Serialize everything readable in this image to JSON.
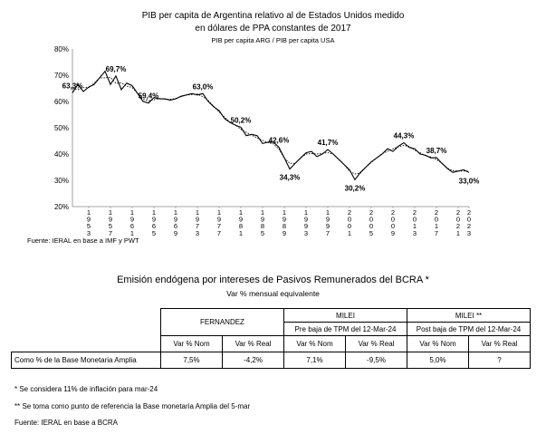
{
  "chart_data": {
    "type": "line",
    "title_line1": "PIB per capita de Argentina relativo al de Estados Unidos medido",
    "title_line2": "en dólares de PPA constantes de 2017",
    "subtitle": "PIB per capita ARG / PIB per capita USA",
    "ylim": [
      20,
      80
    ],
    "yticks": [
      "20%",
      "30%",
      "40%",
      "50%",
      "60%",
      "70%",
      "80%"
    ],
    "xlabels": [
      "1953",
      "1957",
      "1961",
      "1965",
      "1969",
      "1973",
      "1977",
      "1981",
      "1985",
      "1989",
      "1993",
      "1997",
      "2001",
      "2005",
      "2009",
      "2013",
      "2017",
      "2021",
      "2023"
    ],
    "x": [
      1950,
      1951,
      1952,
      1953,
      1954,
      1955,
      1956,
      1957,
      1958,
      1959,
      1960,
      1961,
      1962,
      1963,
      1964,
      1965,
      1966,
      1967,
      1968,
      1969,
      1970,
      1971,
      1972,
      1973,
      1974,
      1975,
      1976,
      1977,
      1978,
      1979,
      1980,
      1981,
      1982,
      1983,
      1984,
      1985,
      1986,
      1987,
      1988,
      1989,
      1990,
      1991,
      1992,
      1993,
      1994,
      1995,
      1996,
      1997,
      1998,
      1999,
      2000,
      2001,
      2002,
      2003,
      2004,
      2005,
      2006,
      2007,
      2008,
      2009,
      2010,
      2011,
      2012,
      2013,
      2014,
      2015,
      2016,
      2017,
      2018,
      2019,
      2020,
      2021,
      2022,
      2023
    ],
    "series": [
      {
        "values": [
          63.3,
          66.5,
          63.8,
          65.5,
          66.5,
          69.0,
          71.5,
          66.5,
          69.7,
          64.5,
          67.0,
          66.0,
          63.0,
          60.0,
          59.4,
          61.5,
          61.0,
          61.0,
          60.5,
          61.0,
          62.0,
          62.5,
          63.0,
          62.5,
          63.0,
          60.0,
          58.0,
          56.5,
          53.5,
          52.0,
          51.0,
          50.2,
          47.0,
          47.5,
          47.0,
          44.0,
          44.5,
          44.5,
          42.6,
          38.5,
          34.3,
          36.5,
          38.5,
          40.5,
          41.0,
          39.0,
          40.0,
          41.7,
          40.0,
          38.0,
          36.0,
          34.0,
          30.2,
          33.0,
          35.0,
          37.0,
          38.5,
          40.0,
          42.0,
          41.0,
          43.0,
          44.3,
          42.5,
          42.0,
          40.0,
          39.5,
          38.5,
          38.7,
          36.5,
          34.5,
          33.0,
          33.5,
          34.0,
          33.0
        ]
      }
    ],
    "annotations": [
      {
        "x": 1950,
        "y": 63.3,
        "label": "63,3%"
      },
      {
        "x": 1958,
        "y": 69.7,
        "label": "69,7%"
      },
      {
        "x": 1964,
        "y": 59.4,
        "label": "59,4%"
      },
      {
        "x": 1974,
        "y": 63.0,
        "label": "63,0%"
      },
      {
        "x": 1981,
        "y": 50.2,
        "label": "50,2%"
      },
      {
        "x": 1988,
        "y": 42.6,
        "label": "42,6%"
      },
      {
        "x": 1990,
        "y": 34.3,
        "label": "34,3%"
      },
      {
        "x": 1997,
        "y": 41.7,
        "label": "41,7%"
      },
      {
        "x": 2002,
        "y": 30.2,
        "label": "30,2%"
      },
      {
        "x": 2011,
        "y": 44.3,
        "label": "44,3%"
      },
      {
        "x": 2017,
        "y": 38.7,
        "label": "38,7%"
      },
      {
        "x": 2023,
        "y": 33.0,
        "label": "33,0%"
      }
    ],
    "grid": false,
    "source": "Fuente: IERAL en base a IMF y PWT"
  },
  "table": {
    "title": "Emisión endógena por intereses de Pasivos Remunerados del BCRA *",
    "subtitle": "Var % mensual equivalente",
    "groups": [
      {
        "l1": "FERNANDEZ",
        "l2": ""
      },
      {
        "l1": "MILEI",
        "l2": "Pre baja de TPM del 12-Mar-24"
      },
      {
        "l1": "MILEI **",
        "l2": "Post baja de TPM del 12-Mar-24"
      }
    ],
    "col_headers": [
      "Var % Nom",
      "Var % Real",
      "Var % Nom",
      "Var % Real",
      "Var % Nom",
      "Var % Real"
    ],
    "row_label": "Como % de la Base Monetaria Amplia",
    "row_values": [
      "7,5%",
      "-4,2%",
      "7,1%",
      "-9,5%",
      "5,0%",
      "?"
    ],
    "notes": [
      "* Se considera 11% de inflación para mar-24",
      "** Se toma como punto de referencia la Base monetaria Amplia del 5-mar",
      "Fuente: IERAL en base a BCRA"
    ]
  }
}
